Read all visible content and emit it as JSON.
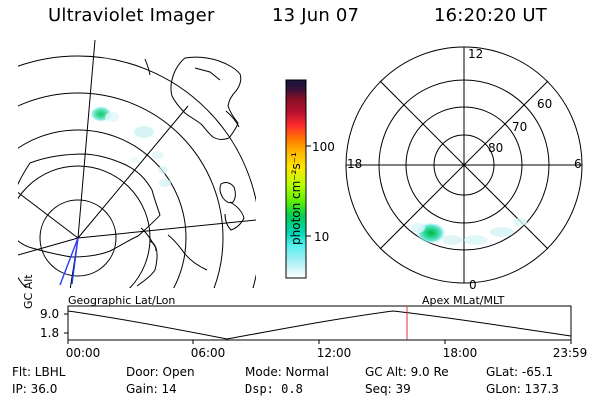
{
  "header": {
    "title": "Ultraviolet Imager",
    "date": "13 Jun 07",
    "time": "16:20:20 UT"
  },
  "colorbar": {
    "label": "photon cm⁻²s⁻¹",
    "ticks": [
      "100",
      "10"
    ]
  },
  "polar_plot": {
    "labels": {
      "top": "12",
      "left": "18",
      "right": "6",
      "bottom": "0",
      "ring_60": "60",
      "ring_70": "70",
      "ring_80": "80"
    }
  },
  "panel_labels": {
    "geographic": "Geographic Lat/Lon",
    "apex": "Apex MLat/MLT"
  },
  "timeline": {
    "y_axis_label": "GC Alt",
    "y_ticks": [
      "9.0",
      "1.8"
    ],
    "x_ticks": [
      "00:00",
      "06:00",
      "12:00",
      "18:00",
      "23:59"
    ]
  },
  "status": {
    "row1": {
      "flt": "Flt: LBHL",
      "door": "Door: Open",
      "mode": "Mode: Normal",
      "gc_alt": "GC Alt: 9.0 Re",
      "glat": "GLat: -65.1"
    },
    "row2": {
      "ip": "IP: 36.0",
      "gain": "Gain: 14",
      "dsp": "Dsp:    0.8",
      "seq": "Seq: 39",
      "glon": "GLon: 137.3"
    }
  },
  "colors": {
    "black": "#000000",
    "white": "#ffffff",
    "blue_line": "#2b3cff",
    "red_marker": "#d53a3a",
    "colorbar_top": "#17173f",
    "colorbar_high": "#8b1024",
    "colorbar_mid": "#ff2b2b",
    "colorbar_orange": "#ff8b00",
    "colorbar_yellow": "#ffe600",
    "colorbar_green": "#9cff00",
    "colorbar_teal": "#00d7b5",
    "colorbar_cyan": "#5af0f0",
    "colorbar_light": "#d8f6f8"
  }
}
